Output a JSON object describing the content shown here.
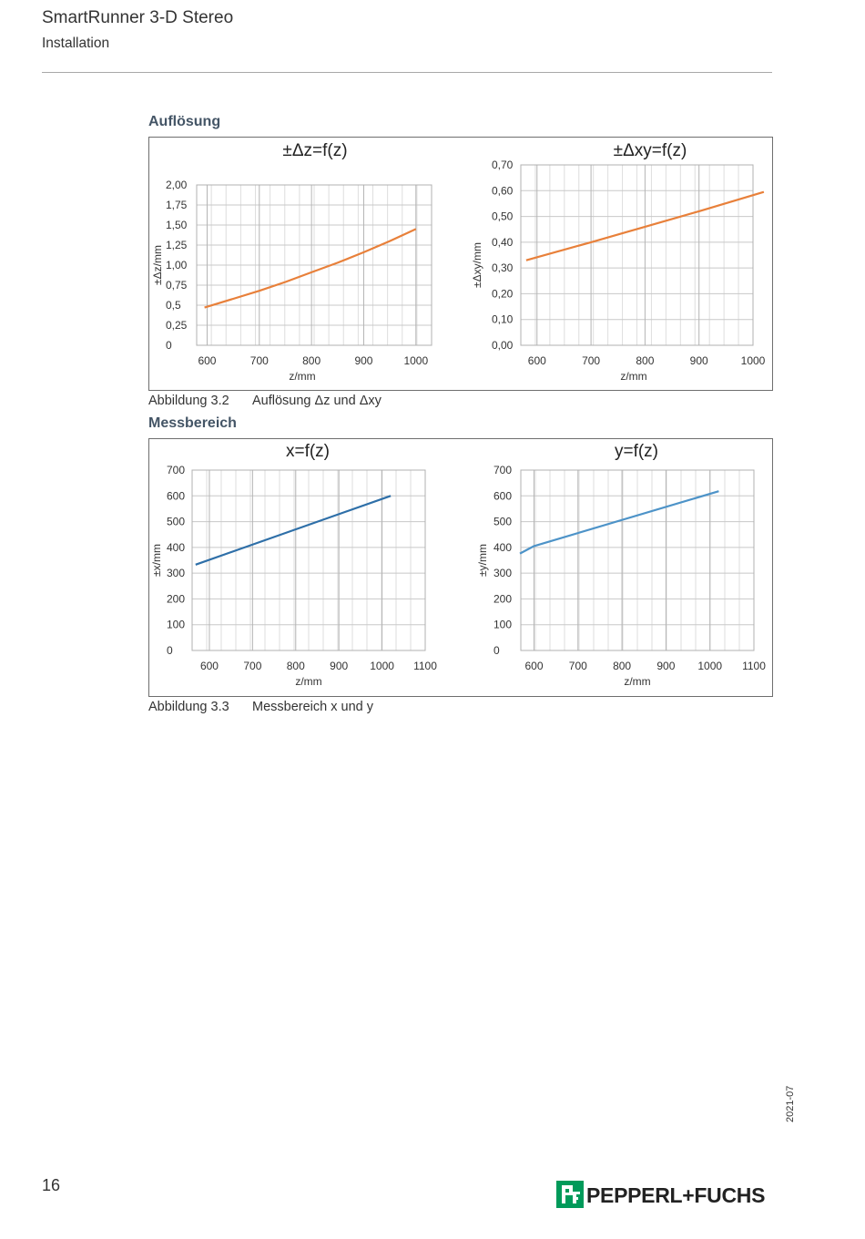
{
  "header": {
    "title": "SmartRunner 3-D Stereo",
    "subtitle": "Installation"
  },
  "sections": {
    "resolution_heading": "Auflösung",
    "range_heading": "Messbereich"
  },
  "captions": {
    "fig32_number": "Abbildung 3.2",
    "fig32_text": "Auflösung Δz und Δxy",
    "fig33_number": "Abbildung 3.3",
    "fig33_text": "Messbereich x und y"
  },
  "footer": {
    "page_number": "16",
    "date": "2021-07",
    "logo_text": "PEPPERL+FUCHS",
    "logo_color": "#009a5a"
  },
  "chart_data": [
    {
      "id": "dz",
      "type": "line",
      "title": "±Δz=f(z)",
      "xlabel": "z/mm",
      "ylabel": "±Δz/mm",
      "xlim": [
        580,
        1030
      ],
      "ylim": [
        0,
        2.0
      ],
      "xticks": [
        600,
        700,
        800,
        900,
        1000
      ],
      "xtick_labels": [
        "600",
        "700",
        "800",
        "900",
        "1000"
      ],
      "yticks": [
        0,
        0.25,
        0.5,
        0.75,
        1.0,
        1.25,
        1.5,
        1.75,
        2.0
      ],
      "ytick_labels": [
        "0",
        "0,25",
        "0,5",
        "0,75",
        "1,00",
        "1,25",
        "1,50",
        "1,75",
        "2,00"
      ],
      "color": "#e8803a",
      "series": [
        {
          "x": [
            595,
            650,
            700,
            750,
            800,
            850,
            900,
            950,
            1000
          ],
          "y": [
            0.47,
            0.58,
            0.68,
            0.79,
            0.91,
            1.03,
            1.16,
            1.3,
            1.45
          ]
        }
      ]
    },
    {
      "id": "dxy",
      "type": "line",
      "title": "±Δxy=f(z)",
      "xlabel": "z/mm",
      "ylabel": "±Δxy/mm",
      "xlim": [
        570,
        1000
      ],
      "ylim": [
        0,
        0.7
      ],
      "xticks": [
        600,
        700,
        800,
        900,
        1000
      ],
      "xtick_labels": [
        "600",
        "700",
        "800",
        "900",
        "1000"
      ],
      "yticks": [
        0,
        0.1,
        0.2,
        0.3,
        0.4,
        0.5,
        0.6,
        0.7
      ],
      "ytick_labels": [
        "0,00",
        "0,10",
        "0,20",
        "0,30",
        "0,40",
        "0,50",
        "0,60",
        "0,70"
      ],
      "color": "#e8803a",
      "series": [
        {
          "x": [
            580,
            700,
            800,
            900,
            1020
          ],
          "y": [
            0.33,
            0.4,
            0.46,
            0.52,
            0.595
          ]
        }
      ]
    },
    {
      "id": "x",
      "type": "line",
      "title": "x=f(z)",
      "xlabel": "z/mm",
      "ylabel": "±x/mm",
      "xlim": [
        560,
        1100
      ],
      "ylim": [
        0,
        700
      ],
      "xticks": [
        600,
        700,
        800,
        900,
        1000,
        1100
      ],
      "xtick_labels": [
        "600",
        "700",
        "800",
        "900",
        "1000",
        "1100"
      ],
      "yticks": [
        0,
        100,
        200,
        300,
        400,
        500,
        600,
        700
      ],
      "ytick_labels": [
        "0",
        "100",
        "200",
        "300",
        "400",
        "500",
        "600",
        "700"
      ],
      "color": "#2e6fa8",
      "series": [
        {
          "x": [
            568,
            1020
          ],
          "y": [
            333,
            600
          ]
        }
      ]
    },
    {
      "id": "y",
      "type": "line",
      "title": "y=f(z)",
      "xlabel": "z/mm",
      "ylabel": "±y/mm",
      "xlim": [
        570,
        1100
      ],
      "ylim": [
        0,
        700
      ],
      "xticks": [
        600,
        700,
        800,
        900,
        1000,
        1100
      ],
      "xtick_labels": [
        "600",
        "700",
        "800",
        "900",
        "1000",
        "1100"
      ],
      "yticks": [
        0,
        100,
        200,
        300,
        400,
        500,
        600,
        700
      ],
      "ytick_labels": [
        "0",
        "100",
        "200",
        "300",
        "400",
        "500",
        "600",
        "700"
      ],
      "color": "#4d93c8",
      "series": [
        {
          "x": [
            568,
            600,
            1020
          ],
          "y": [
            376,
            405,
            618
          ]
        }
      ]
    }
  ]
}
